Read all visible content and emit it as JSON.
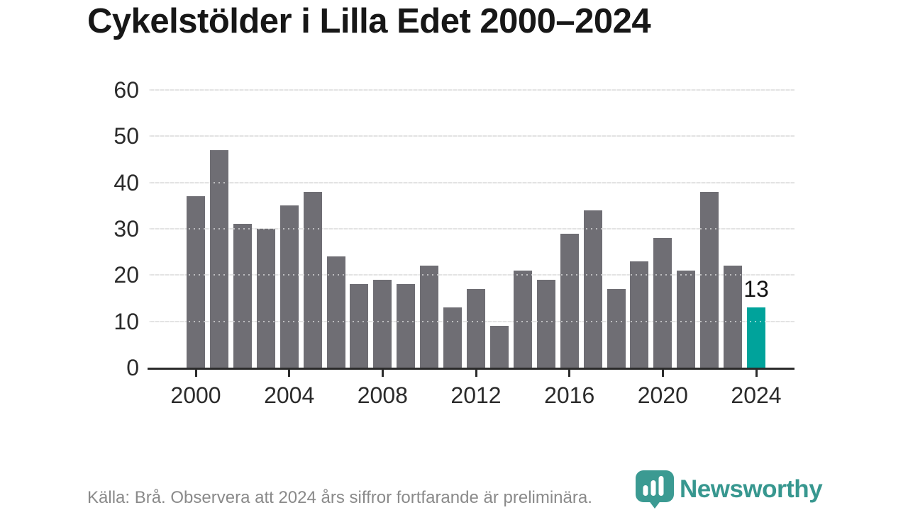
{
  "page": {
    "title": "Cykelstölder i Lilla Edet 2000–2024"
  },
  "chart_data": {
    "type": "bar",
    "title": "Cykelstölder i Lilla Edet 2000–2024",
    "categories": [
      2000,
      2001,
      2002,
      2003,
      2004,
      2005,
      2006,
      2007,
      2008,
      2009,
      2010,
      2011,
      2012,
      2013,
      2014,
      2015,
      2016,
      2017,
      2018,
      2019,
      2020,
      2021,
      2022,
      2023,
      2024
    ],
    "values": [
      37,
      47,
      31,
      30,
      35,
      38,
      24,
      18,
      19,
      18,
      22,
      13,
      17,
      9,
      21,
      19,
      29,
      34,
      17,
      23,
      28,
      21,
      38,
      22,
      13
    ],
    "xlabel": "",
    "ylabel": "",
    "ylim": [
      0,
      60
    ],
    "yticks": [
      0,
      10,
      20,
      30,
      40,
      50,
      60
    ],
    "xticks": [
      2000,
      2004,
      2008,
      2012,
      2016,
      2020,
      2024
    ],
    "grid": true,
    "legend": "none",
    "bar_color": "#6f6e74",
    "gridline_color": "#e3e3e3",
    "axis_color": "#2b2b2b",
    "highlight": {
      "year": 2024,
      "value": 13,
      "label": "13",
      "color": "#00a39b"
    }
  },
  "footer": {
    "source_note": "Källa: Brå. Observera att 2024 års siffror fortfarande är preliminära."
  },
  "branding": {
    "logo_text": "Newsworthy",
    "logo_color": "#37978f",
    "icon": "newsworthy-bar-chart-bubble-icon"
  }
}
